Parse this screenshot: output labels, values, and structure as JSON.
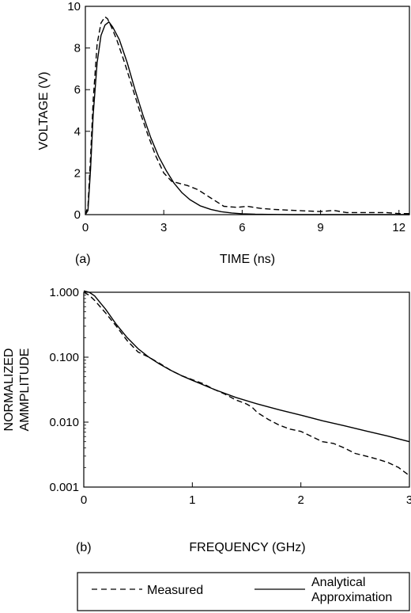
{
  "chart_data": [
    {
      "type": "line",
      "panel_label": "(a)",
      "xlabel": "TIME (ns)",
      "ylabel": "VOLTAGE (V)",
      "xlim": [
        0,
        12.4
      ],
      "ylim": [
        0,
        10
      ],
      "xticks": [
        0,
        3,
        6,
        9,
        12
      ],
      "yticks": [
        0,
        2,
        4,
        6,
        8,
        10
      ],
      "grid": false,
      "series": [
        {
          "name": "Measured",
          "style": "dashed",
          "x": [
            0,
            0.1,
            0.2,
            0.3,
            0.45,
            0.6,
            0.75,
            0.85,
            1.0,
            1.2,
            1.5,
            1.8,
            2.1,
            2.4,
            2.7,
            3.0,
            3.3,
            3.6,
            3.9,
            4.3,
            4.8,
            5.3,
            5.8,
            6.2,
            6.7,
            7.2,
            8.0,
            9.0,
            9.5,
            10.0,
            11.0,
            11.5,
            12.0,
            12.4
          ],
          "y": [
            0,
            0.4,
            2.8,
            5.5,
            8.2,
            9.2,
            9.5,
            9.4,
            9.0,
            8.4,
            7.3,
            6.1,
            4.9,
            3.8,
            2.8,
            2.0,
            1.6,
            1.5,
            1.4,
            1.2,
            0.8,
            0.4,
            0.35,
            0.4,
            0.3,
            0.25,
            0.2,
            0.15,
            0.2,
            0.1,
            0.1,
            0.1,
            0.05,
            0.05
          ]
        },
        {
          "name": "Analytical Approximation",
          "style": "solid",
          "x": [
            0,
            0.1,
            0.2,
            0.3,
            0.45,
            0.6,
            0.75,
            0.9,
            1.05,
            1.3,
            1.6,
            1.9,
            2.2,
            2.5,
            2.8,
            3.1,
            3.4,
            3.7,
            4.0,
            4.4,
            4.8,
            5.2,
            5.6,
            6.0,
            6.5,
            7.0,
            8.0,
            9.0,
            10.0,
            11.0,
            12.0,
            12.4
          ],
          "y": [
            0,
            0.2,
            2.2,
            4.8,
            7.3,
            8.6,
            9.1,
            9.25,
            9.0,
            8.4,
            7.3,
            6.0,
            4.8,
            3.7,
            2.8,
            2.1,
            1.5,
            1.05,
            0.72,
            0.42,
            0.25,
            0.14,
            0.08,
            0.04,
            0.02,
            0.01,
            0,
            0,
            0,
            0,
            0,
            0
          ]
        }
      ]
    },
    {
      "type": "line",
      "panel_label": "(b)",
      "xlabel": "FREQUENCY (GHz)",
      "ylabel": "NORMALIZED AMMPLITUDE",
      "yscale": "log",
      "xlim": [
        0,
        3
      ],
      "ylim": [
        0.001,
        1
      ],
      "xticks": [
        0,
        1,
        2,
        3
      ],
      "yticks": [
        0.001,
        0.01,
        0.1,
        1
      ],
      "ytick_labels": [
        "0.001",
        "0.010",
        "0.100",
        "1.000"
      ],
      "grid": false,
      "series": [
        {
          "name": "Measured",
          "style": "dashed",
          "x": [
            0,
            0.05,
            0.1,
            0.2,
            0.3,
            0.4,
            0.5,
            0.6,
            0.7,
            0.8,
            0.9,
            1.0,
            1.1,
            1.2,
            1.3,
            1.4,
            1.5,
            1.55,
            1.6,
            1.7,
            1.8,
            1.9,
            2.0,
            2.1,
            2.2,
            2.3,
            2.4,
            2.5,
            2.6,
            2.7,
            2.8,
            2.9,
            3.0
          ],
          "y": [
            1.0,
            0.9,
            0.75,
            0.48,
            0.3,
            0.18,
            0.12,
            0.1,
            0.08,
            0.063,
            0.052,
            0.045,
            0.039,
            0.032,
            0.027,
            0.022,
            0.019,
            0.017,
            0.014,
            0.011,
            0.009,
            0.0078,
            0.0072,
            0.006,
            0.005,
            0.0047,
            0.004,
            0.0033,
            0.003,
            0.0027,
            0.0024,
            0.002,
            0.0015
          ]
        },
        {
          "name": "Analytical Approximation",
          "style": "solid",
          "x": [
            0,
            0.05,
            0.1,
            0.2,
            0.3,
            0.4,
            0.5,
            0.6,
            0.7,
            0.8,
            0.9,
            1.0,
            1.2,
            1.4,
            1.6,
            1.8,
            2.0,
            2.2,
            2.4,
            2.6,
            2.8,
            3.0
          ],
          "y": [
            1.05,
            1.0,
            0.88,
            0.55,
            0.32,
            0.2,
            0.135,
            0.1,
            0.078,
            0.063,
            0.052,
            0.044,
            0.032,
            0.024,
            0.019,
            0.0155,
            0.0128,
            0.0105,
            0.0088,
            0.0073,
            0.0061,
            0.005
          ]
        }
      ]
    }
  ],
  "legend": {
    "placement": "bottom",
    "entries": [
      {
        "label": "Measured",
        "style": "dashed"
      },
      {
        "label_lines": [
          "Analytical",
          "Approximation"
        ],
        "style": "solid"
      }
    ]
  }
}
